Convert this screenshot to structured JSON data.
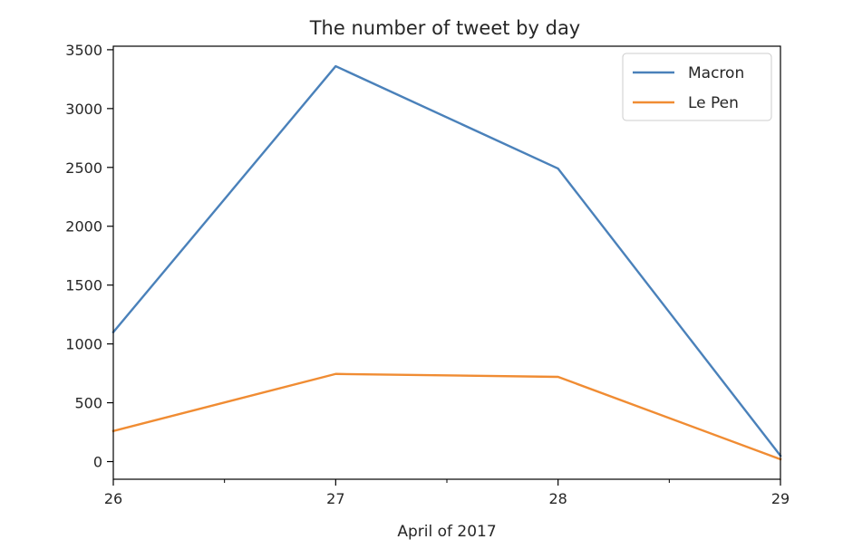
{
  "chart_data": {
    "type": "line",
    "title": "The number of tweet by day",
    "xlabel": "April of 2017",
    "ylabel": "",
    "x": [
      26,
      27,
      28,
      29
    ],
    "xlim": [
      26,
      29
    ],
    "ylim": [
      -150,
      3530
    ],
    "x_ticks": [
      26,
      27,
      28,
      29
    ],
    "x_minor_ticks": [
      26.5,
      27.5,
      28.5
    ],
    "y_ticks": [
      0,
      500,
      1000,
      1500,
      2000,
      2500,
      3000,
      3500
    ],
    "grid": false,
    "legend_position": "top-right",
    "series": [
      {
        "name": "Macron",
        "color": "#4a81ba",
        "values": [
          1100,
          3360,
          2490,
          50
        ]
      },
      {
        "name": "Le Pen",
        "color": "#f08c33",
        "values": [
          260,
          745,
          720,
          20
        ]
      }
    ]
  }
}
